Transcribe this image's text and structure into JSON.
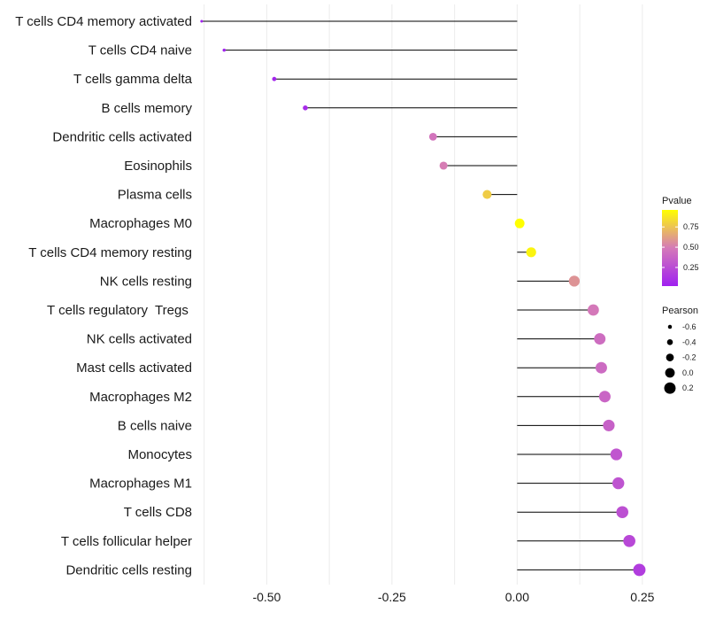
{
  "chart_data": {
    "type": "lollipop",
    "title": "",
    "xlabel": "",
    "ylabel": "",
    "xlim": [
      -0.635,
      0.275
    ],
    "x_ticks": [
      -0.5,
      -0.25,
      0.0,
      0.25
    ],
    "x_tick_labels": [
      "-0.50",
      "-0.25",
      "0.00",
      "0.25"
    ],
    "grid": true,
    "categories": [
      "T cells CD4 memory activated",
      "T cells CD4 naive",
      "T cells gamma delta",
      "B cells memory",
      "Dendritic cells activated",
      "Eosinophils",
      "Plasma cells",
      "Macrophages M0",
      "T cells CD4 memory resting",
      "NK cells resting",
      "T cells regulatory  Tregs ",
      "NK cells activated",
      "Mast cells activated",
      "Macrophages M2",
      "B cells naive",
      "Monocytes",
      "Macrophages M1",
      "T cells CD8",
      "T cells follicular helper",
      "Dendritic cells resting"
    ],
    "pearson": [
      -0.63,
      -0.585,
      -0.485,
      -0.423,
      -0.168,
      -0.147,
      -0.06,
      0.005,
      0.028,
      0.114,
      0.152,
      0.165,
      0.168,
      0.175,
      0.183,
      0.198,
      0.202,
      0.21,
      0.224,
      0.244
    ],
    "pvalue": [
      0.02,
      0.03,
      0.05,
      0.08,
      0.46,
      0.5,
      0.78,
      0.96,
      0.92,
      0.58,
      0.48,
      0.42,
      0.41,
      0.38,
      0.36,
      0.3,
      0.29,
      0.27,
      0.23,
      0.17
    ],
    "color_legend": {
      "title": "Pvalue",
      "ticks": [
        0.75,
        0.5,
        0.25
      ],
      "tick_labels": [
        "0.75",
        "0.50",
        "0.25"
      ],
      "range": [
        0.02,
        0.96
      ],
      "colors": [
        "#a020f0",
        "#ff00ff",
        "#ffff00"
      ]
    },
    "size_legend": {
      "title": "Pearson",
      "values": [
        -0.6,
        -0.4,
        -0.2,
        0.0,
        0.2
      ],
      "labels": [
        "-0.6",
        "-0.4",
        "-0.2",
        "0.0",
        "0.2"
      ]
    },
    "legend_position": "right"
  }
}
